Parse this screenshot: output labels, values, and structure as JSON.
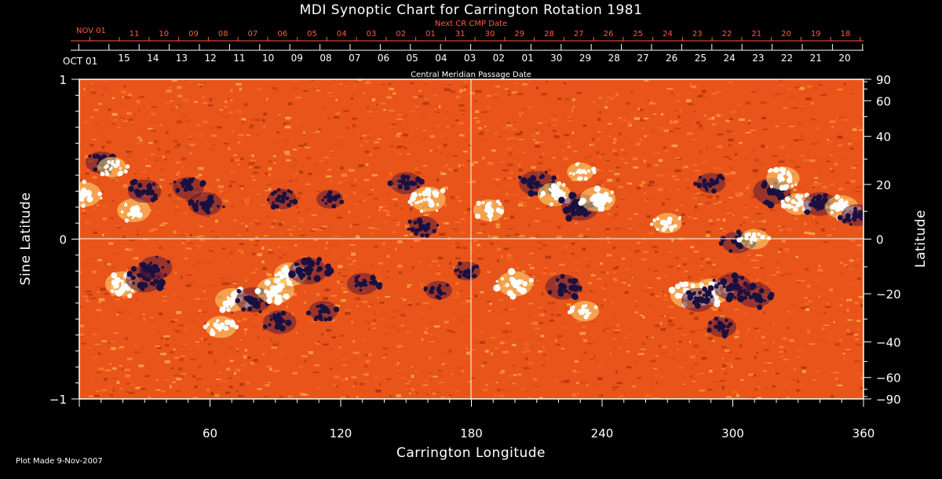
{
  "chart_data": {
    "type": "heatmap",
    "title": "MDI Synoptic Chart for Carrington Rotation 1981",
    "xlabel": "Carrington Longitude",
    "ylabel_left": "Sine Latitude",
    "ylabel_right": "Latitude",
    "xlim": [
      0,
      360
    ],
    "ylim": [
      -1,
      1
    ],
    "x_ticks": [
      60,
      120,
      180,
      240,
      300,
      360
    ],
    "y_left_ticks": [
      {
        "value": 1,
        "label": "1"
      },
      {
        "value": 0,
        "label": "0"
      },
      {
        "value": -1,
        "label": "−1"
      }
    ],
    "y_right_ticks": [
      90,
      60,
      40,
      20,
      0,
      -20,
      -40,
      -60,
      -90
    ],
    "y_right_labels": [
      "90",
      "60",
      "40",
      "20",
      "0",
      "−20",
      "−40",
      "−60",
      "−90"
    ],
    "top_axis_label": "Central Meridian Passage Date",
    "top_axis_start_label": "OCT 01",
    "top_axis_dates": [
      "15",
      "14",
      "13",
      "12",
      "11",
      "10",
      "09",
      "08",
      "07",
      "06",
      "05",
      "04",
      "03",
      "02",
      "01",
      "30",
      "29",
      "28",
      "27",
      "26",
      "25",
      "24",
      "23",
      "22",
      "21",
      "20"
    ],
    "next_axis_label": "Next CR CMP Date",
    "next_axis_start_label": "NOV 01",
    "next_axis_dates": [
      "11",
      "10",
      "09",
      "08",
      "07",
      "06",
      "05",
      "04",
      "03",
      "02",
      "01",
      "31",
      "30",
      "29",
      "28",
      "27",
      "26",
      "25",
      "24",
      "23",
      "22",
      "21",
      "20",
      "19",
      "18"
    ],
    "footer": "Plot Made  9-Nov-2007",
    "colors": {
      "background": "#000000",
      "map_base": "#e8541a",
      "positive_polarity": "#ffffff",
      "negative_polarity": "#1a1040",
      "next_axis": "#ff5a3c"
    },
    "active_regions": [
      {
        "lon": 2,
        "slat": 0.28,
        "pol": "positive",
        "strength": 0.9
      },
      {
        "lon": 10,
        "slat": 0.48,
        "pol": "negative",
        "strength": 0.7
      },
      {
        "lon": 15,
        "slat": 0.45,
        "pol": "positive",
        "strength": 0.6
      },
      {
        "lon": 25,
        "slat": 0.18,
        "pol": "positive",
        "strength": 0.8
      },
      {
        "lon": 30,
        "slat": 0.3,
        "pol": "negative",
        "strength": 0.8
      },
      {
        "lon": 50,
        "slat": 0.32,
        "pol": "negative",
        "strength": 0.7
      },
      {
        "lon": 58,
        "slat": 0.22,
        "pol": "negative",
        "strength": 0.8
      },
      {
        "lon": 20,
        "slat": -0.28,
        "pol": "positive",
        "strength": 0.9
      },
      {
        "lon": 30,
        "slat": -0.25,
        "pol": "negative",
        "strength": 1.0
      },
      {
        "lon": 35,
        "slat": -0.18,
        "pol": "negative",
        "strength": 0.8
      },
      {
        "lon": 70,
        "slat": -0.38,
        "pol": "positive",
        "strength": 0.8
      },
      {
        "lon": 80,
        "slat": -0.38,
        "pol": "negative",
        "strength": 0.9
      },
      {
        "lon": 65,
        "slat": -0.55,
        "pol": "positive",
        "strength": 0.7
      },
      {
        "lon": 90,
        "slat": -0.32,
        "pol": "positive",
        "strength": 1.0
      },
      {
        "lon": 97,
        "slat": -0.22,
        "pol": "positive",
        "strength": 0.8
      },
      {
        "lon": 105,
        "slat": -0.2,
        "pol": "negative",
        "strength": 1.0
      },
      {
        "lon": 92,
        "slat": -0.52,
        "pol": "negative",
        "strength": 0.8
      },
      {
        "lon": 112,
        "slat": -0.45,
        "pol": "negative",
        "strength": 0.6
      },
      {
        "lon": 93,
        "slat": 0.25,
        "pol": "negative",
        "strength": 0.6
      },
      {
        "lon": 115,
        "slat": 0.25,
        "pol": "negative",
        "strength": 0.5
      },
      {
        "lon": 130,
        "slat": -0.28,
        "pol": "negative",
        "strength": 0.7
      },
      {
        "lon": 150,
        "slat": 0.35,
        "pol": "negative",
        "strength": 0.7
      },
      {
        "lon": 160,
        "slat": 0.25,
        "pol": "positive",
        "strength": 0.9
      },
      {
        "lon": 158,
        "slat": 0.08,
        "pol": "negative",
        "strength": 0.6
      },
      {
        "lon": 165,
        "slat": -0.32,
        "pol": "negative",
        "strength": 0.5
      },
      {
        "lon": 178,
        "slat": -0.2,
        "pol": "negative",
        "strength": 0.5
      },
      {
        "lon": 188,
        "slat": 0.18,
        "pol": "positive",
        "strength": 0.7
      },
      {
        "lon": 200,
        "slat": -0.28,
        "pol": "positive",
        "strength": 0.9
      },
      {
        "lon": 210,
        "slat": 0.35,
        "pol": "negative",
        "strength": 0.9
      },
      {
        "lon": 218,
        "slat": 0.28,
        "pol": "positive",
        "strength": 0.8
      },
      {
        "lon": 222,
        "slat": -0.3,
        "pol": "negative",
        "strength": 0.9
      },
      {
        "lon": 230,
        "slat": 0.2,
        "pol": "negative",
        "strength": 1.0
      },
      {
        "lon": 238,
        "slat": 0.25,
        "pol": "positive",
        "strength": 0.9
      },
      {
        "lon": 232,
        "slat": -0.45,
        "pol": "positive",
        "strength": 0.6
      },
      {
        "lon": 230,
        "slat": 0.42,
        "pol": "positive",
        "strength": 0.5
      },
      {
        "lon": 270,
        "slat": 0.1,
        "pol": "positive",
        "strength": 0.6
      },
      {
        "lon": 280,
        "slat": -0.35,
        "pol": "positive",
        "strength": 1.0
      },
      {
        "lon": 290,
        "slat": -0.33,
        "pol": "positive",
        "strength": 1.0
      },
      {
        "lon": 300,
        "slat": -0.3,
        "pol": "negative",
        "strength": 1.0
      },
      {
        "lon": 310,
        "slat": -0.35,
        "pol": "negative",
        "strength": 0.9
      },
      {
        "lon": 284,
        "slat": -0.38,
        "pol": "negative",
        "strength": 0.8
      },
      {
        "lon": 295,
        "slat": -0.55,
        "pol": "negative",
        "strength": 0.6
      },
      {
        "lon": 302,
        "slat": -0.02,
        "pol": "negative",
        "strength": 0.7
      },
      {
        "lon": 310,
        "slat": 0.0,
        "pol": "positive",
        "strength": 0.6
      },
      {
        "lon": 290,
        "slat": 0.35,
        "pol": "negative",
        "strength": 0.6
      },
      {
        "lon": 318,
        "slat": 0.3,
        "pol": "negative",
        "strength": 1.0
      },
      {
        "lon": 323,
        "slat": 0.38,
        "pol": "positive",
        "strength": 0.8
      },
      {
        "lon": 330,
        "slat": 0.22,
        "pol": "positive",
        "strength": 0.7
      },
      {
        "lon": 340,
        "slat": 0.22,
        "pol": "negative",
        "strength": 0.8
      },
      {
        "lon": 350,
        "slat": 0.2,
        "pol": "positive",
        "strength": 0.8
      },
      {
        "lon": 357,
        "slat": 0.15,
        "pol": "negative",
        "strength": 0.7
      }
    ]
  }
}
